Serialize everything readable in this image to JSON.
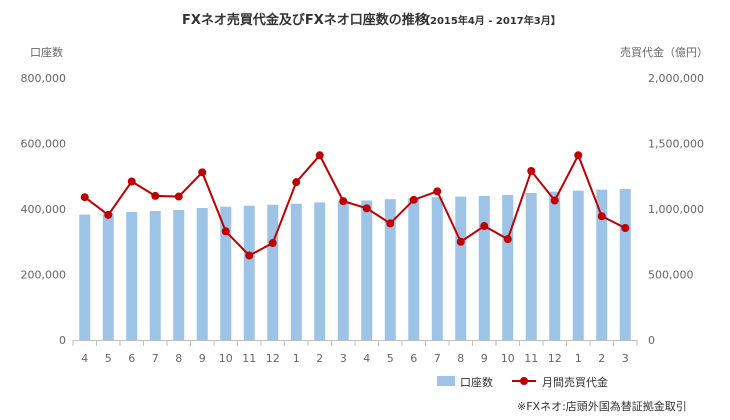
{
  "chart_data": {
    "type": "bar",
    "title": "FXネオ売買代金及びFXネオ口座数の推移",
    "period": "【2015年4月 - 2017年3月】",
    "y_left_label": "口座数",
    "y_right_label": "売買代金（億円）",
    "y_left_ticks": [
      "800,000",
      "600,000",
      "400,000",
      "200,000",
      "0"
    ],
    "y_right_ticks": [
      "2,000,000",
      "1,500,000",
      "1,000,000",
      "500,000",
      "0"
    ],
    "ylim_left": [
      0,
      800000
    ],
    "ylim_right": [
      0,
      2000000
    ],
    "grid": false,
    "legend_position": "bottom-right",
    "categories": [
      "4",
      "5",
      "6",
      "7",
      "8",
      "9",
      "10",
      "11",
      "12",
      "1",
      "2",
      "3",
      "4",
      "5",
      "6",
      "7",
      "8",
      "9",
      "10",
      "11",
      "12",
      "1",
      "2",
      "3"
    ],
    "series": [
      {
        "name": "口座数",
        "type": "bar",
        "axis": "left",
        "color": "#9dc3e6",
        "values": [
          383000,
          387000,
          391000,
          394000,
          397000,
          403000,
          407000,
          410000,
          413000,
          416000,
          420000,
          423000,
          426000,
          430000,
          433000,
          436000,
          438000,
          440000,
          443000,
          449000,
          453000,
          456000,
          459000,
          461000
        ]
      },
      {
        "name": "月間売買代金",
        "type": "line",
        "axis": "right",
        "color": "#c00000",
        "values": [
          1090000,
          955000,
          1210000,
          1100000,
          1095000,
          1280000,
          830000,
          645000,
          740000,
          1205000,
          1410000,
          1060000,
          1005000,
          890000,
          1070000,
          1135000,
          750000,
          870000,
          770000,
          1290000,
          1065000,
          1410000,
          945000,
          855000
        ]
      }
    ]
  },
  "legend": {
    "bar_label": "口座数",
    "line_label": "月間売買代金"
  },
  "footnote": "※FXネオ:店頭外国為替証拠金取引"
}
